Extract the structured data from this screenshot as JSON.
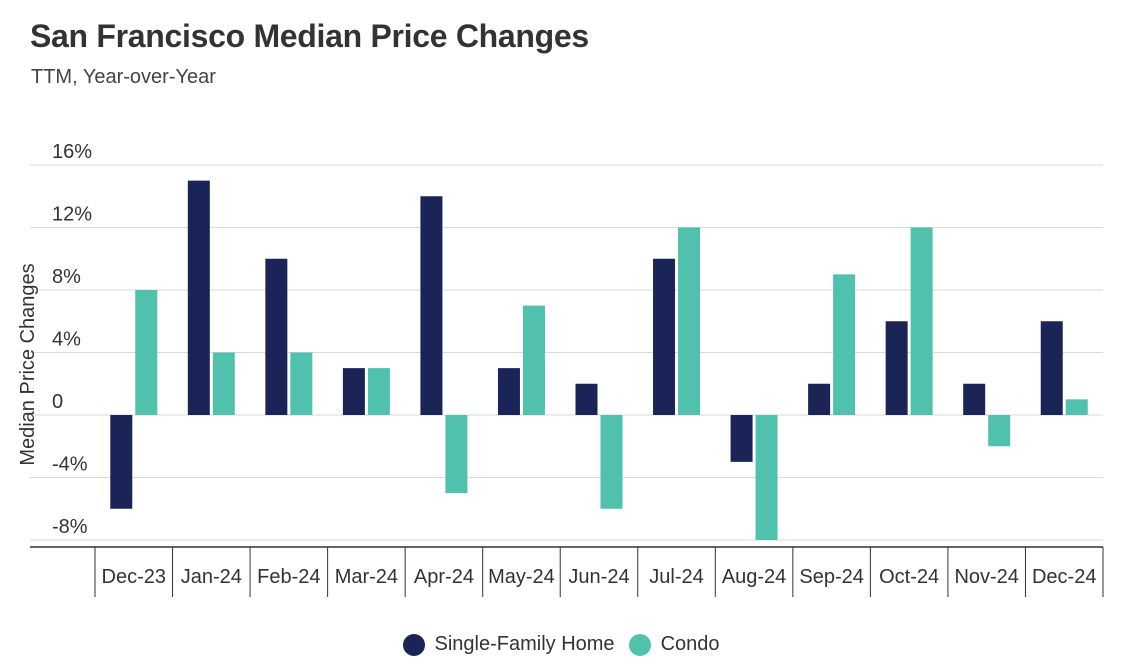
{
  "title": "San Francisco Median Price Changes",
  "subtitle": "TTM, Year-over-Year",
  "colors": {
    "single_family": "#1b2457",
    "condo": "#4fc1ad",
    "grid": "#d9d9d9",
    "axis": "#333333"
  },
  "chart_data": {
    "type": "bar",
    "title": "San Francisco Median Price Changes",
    "subtitle": "TTM, Year-over-Year",
    "xlabel": "",
    "ylabel": "Median Price Changes",
    "ylim": [
      -8,
      16
    ],
    "yticks": [
      16,
      12,
      8,
      4,
      0,
      -4,
      -8
    ],
    "ytick_labels": [
      "16%",
      "12%",
      "8%",
      "4%",
      "0",
      "-4%",
      "-8%"
    ],
    "grid": true,
    "legend_position": "bottom",
    "categories": [
      "Dec-23",
      "Jan-24",
      "Feb-24",
      "Mar-24",
      "Apr-24",
      "May-24",
      "Jun-24",
      "Jul-24",
      "Aug-24",
      "Sep-24",
      "Oct-24",
      "Nov-24",
      "Dec-24"
    ],
    "series": [
      {
        "name": "Single-Family Home",
        "values": [
          -6,
          15,
          10,
          3,
          14,
          3,
          2,
          10,
          -3,
          2,
          6,
          2,
          6
        ]
      },
      {
        "name": "Condo",
        "values": [
          8,
          4,
          4,
          3,
          -5,
          7,
          -6,
          12,
          -8,
          9,
          12,
          -2,
          1
        ]
      }
    ]
  }
}
